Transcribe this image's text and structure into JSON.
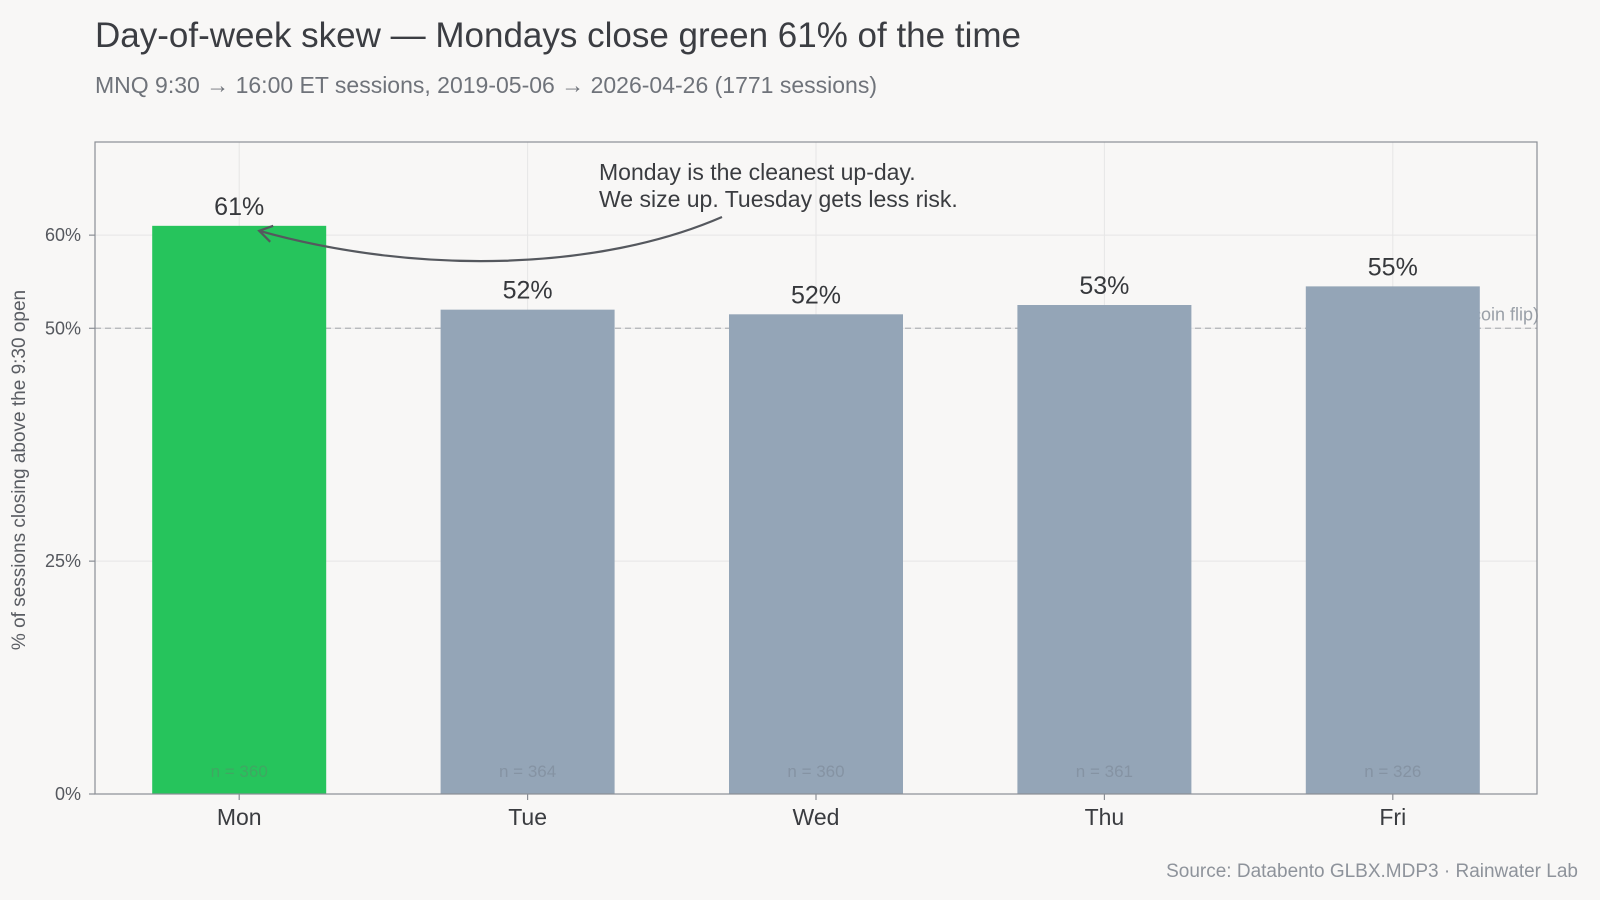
{
  "header": {
    "title": "Day-of-week skew — Mondays close green 61% of the time",
    "subtitle": "MNQ 9:30 → 16:00 ET sessions, 2019-05-06 → 2026-04-26 (1771 sessions)"
  },
  "footer": {
    "source": "Source: Databento GLBX.MDP3 · Rainwater Lab"
  },
  "colors": {
    "highlight": "#26c45c",
    "bar": "#94a5b7",
    "grid": "#e6e6e6",
    "axis": "#8a8e95",
    "text": "#3f4147",
    "muted": "#8e939b"
  },
  "chart_data": {
    "type": "bar",
    "categories": [
      "Mon",
      "Tue",
      "Wed",
      "Thu",
      "Fri"
    ],
    "values": [
      61,
      52,
      51.5,
      52.5,
      54.5
    ],
    "value_labels": [
      "61%",
      "52%",
      "52%",
      "53%",
      "55%"
    ],
    "counts": [
      "n = 360",
      "n = 364",
      "n = 360",
      "n = 361",
      "n = 326"
    ],
    "highlight_index": 0,
    "ylabel": "% of sessions closing above the 9:30 open",
    "ylim": [
      0,
      70
    ],
    "yticks": [
      0,
      25,
      50,
      60
    ],
    "ytick_labels": [
      "0%",
      "25%",
      "50%",
      "60%"
    ],
    "grid": true,
    "reference_line": {
      "value": 50,
      "label": "50% (coin flip)"
    },
    "annotation": {
      "lines": [
        "Monday is the cleanest up-day.",
        "We size up. Tuesday gets less risk."
      ],
      "target_category": "Mon"
    }
  }
}
